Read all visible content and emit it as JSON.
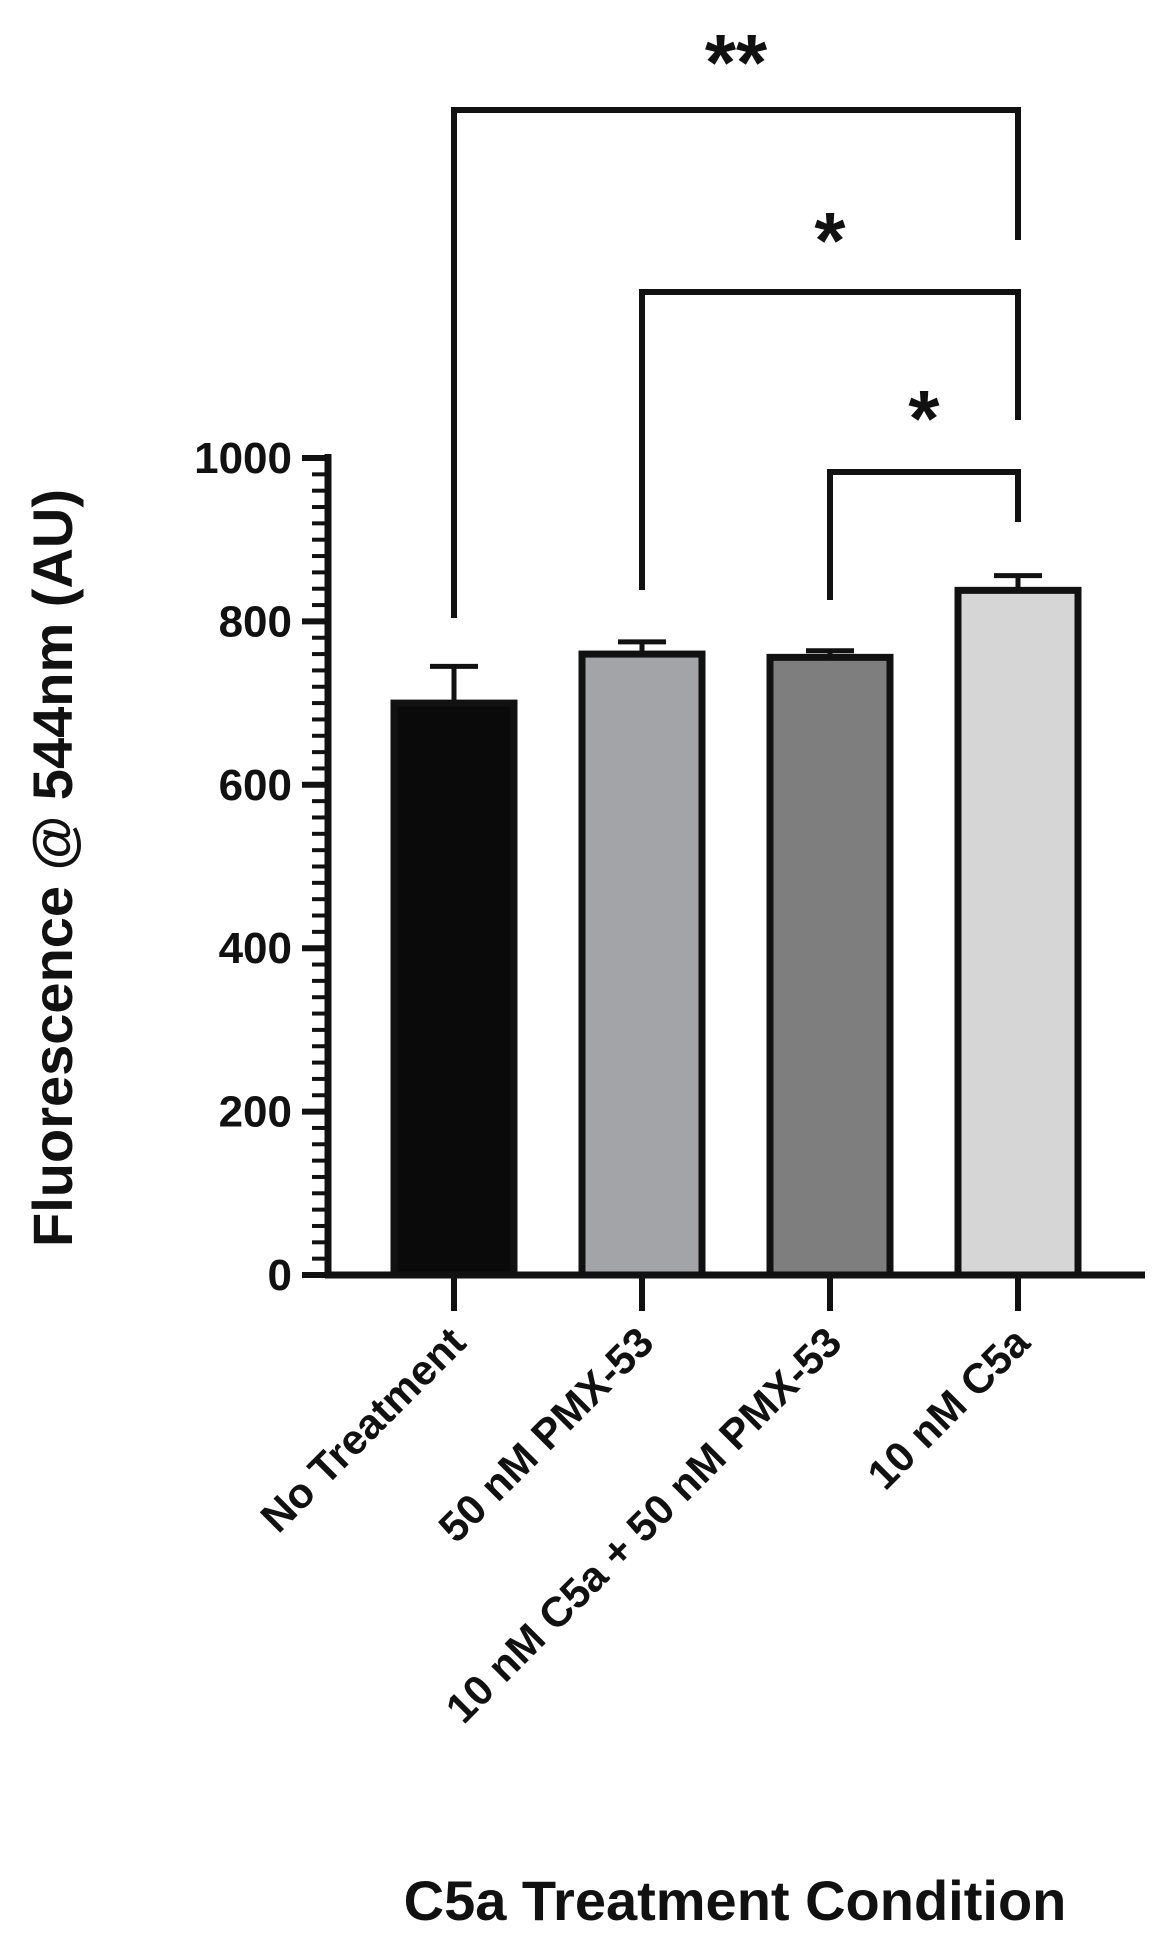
{
  "chart_data": {
    "type": "bar",
    "categories": [
      "No Treatment",
      "50 nM PMX-53",
      "10 nM C5a + 50 nM PMX-53",
      "10 nM C5a"
    ],
    "values": [
      700,
      760,
      756,
      838
    ],
    "errors": [
      45,
      15,
      8,
      18
    ],
    "colors": [
      "#0a0a0a",
      "#a3a4a7",
      "#7e7e7e",
      "#d6d6d6"
    ],
    "title": "",
    "xlabel": "C5a Treatment Condition",
    "ylabel": "Fluorescence @ 544nm (AU)",
    "ylim": [
      0,
      1000
    ],
    "yticks": [
      "0",
      "200",
      "400",
      "600",
      "800",
      "1000"
    ],
    "grid": false,
    "significance": [
      {
        "from": 0,
        "to": 3,
        "label": "**"
      },
      {
        "from": 1,
        "to": 3,
        "label": "*"
      },
      {
        "from": 2,
        "to": 3,
        "label": "*"
      }
    ]
  }
}
